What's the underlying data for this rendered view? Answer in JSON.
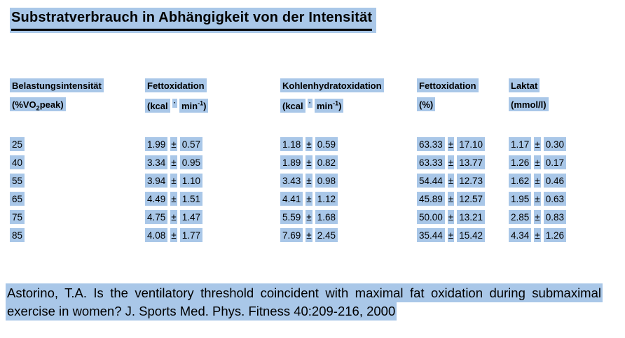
{
  "page": {
    "title": "Substratverbrauch in Abhängigkeit von der Intensität",
    "highlight_color": "#a9c7e8"
  },
  "symbols": {
    "plus_minus": "±"
  },
  "table": {
    "columns": [
      {
        "name": "Belastungsintensität",
        "unit": {
          "pre": "(%VO",
          "sub": "2",
          "post": "peak)"
        }
      },
      {
        "name": "Fettoxidation",
        "unit": {
          "a": "(kcal",
          "dot": "·",
          "b": "min",
          "sup": "-1",
          "close": ")"
        }
      },
      {
        "name": "Kohlenhydratoxidation",
        "unit": {
          "a": "(kcal",
          "dot": "·",
          "b": "min",
          "sup": "-1",
          "close": ")"
        }
      },
      {
        "name": "Fettoxidation",
        "unit": {
          "simple": "(%)"
        }
      },
      {
        "name": "Laktat",
        "unit": {
          "simple": "(mmol/l)"
        }
      }
    ],
    "rows": [
      {
        "intensity": "25",
        "fat_ox": {
          "mean": "1.99",
          "sd": "0.57"
        },
        "cho_ox": {
          "mean": "1.18",
          "sd": "0.59"
        },
        "fat_pct": {
          "mean": "63.33",
          "sd": "17.10"
        },
        "lactate": {
          "mean": "1.17",
          "sd": "0.30"
        }
      },
      {
        "intensity": "40",
        "fat_ox": {
          "mean": "3.34",
          "sd": "0.95"
        },
        "cho_ox": {
          "mean": "1.89",
          "sd": "0.82"
        },
        "fat_pct": {
          "mean": "63.33",
          "sd": "13.77"
        },
        "lactate": {
          "mean": "1.26",
          "sd": "0.17"
        }
      },
      {
        "intensity": "55",
        "fat_ox": {
          "mean": "3.94",
          "sd": "1.10"
        },
        "cho_ox": {
          "mean": "3.43",
          "sd": "0.98"
        },
        "fat_pct": {
          "mean": "54.44",
          "sd": "12.73"
        },
        "lactate": {
          "mean": "1.62",
          "sd": "0.46"
        }
      },
      {
        "intensity": "65",
        "fat_ox": {
          "mean": "4.49",
          "sd": "1.51"
        },
        "cho_ox": {
          "mean": "4.41",
          "sd": "1.12"
        },
        "fat_pct": {
          "mean": "45.89",
          "sd": "12.57"
        },
        "lactate": {
          "mean": "1.95",
          "sd": "0.63"
        }
      },
      {
        "intensity": "75",
        "fat_ox": {
          "mean": "4.75",
          "sd": "1.47"
        },
        "cho_ox": {
          "mean": "5.59",
          "sd": "1.68"
        },
        "fat_pct": {
          "mean": "50.00",
          "sd": "13.21"
        },
        "lactate": {
          "mean": "2.85",
          "sd": "0.83"
        }
      },
      {
        "intensity": "85",
        "fat_ox": {
          "mean": "4.08",
          "sd": "1.77"
        },
        "cho_ox": {
          "mean": "7.69",
          "sd": "2.45"
        },
        "fat_pct": {
          "mean": "35.44",
          "sd": "15.42"
        },
        "lactate": {
          "mean": "4.34",
          "sd": "1.26"
        }
      }
    ]
  },
  "citation": {
    "text": "Astorino, T.A. Is the ventilatory threshold coincident with maximal fat oxidation during submaximal exercise in women? J. Sports Med. Phys. Fitness 40:209-216, 2000"
  }
}
